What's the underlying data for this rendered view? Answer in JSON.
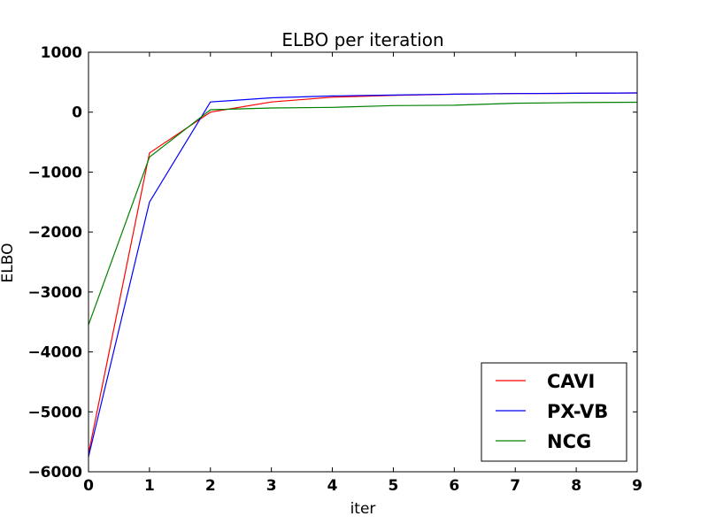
{
  "chart_data": {
    "type": "line",
    "title": "ELBO per iteration",
    "xlabel": "iter",
    "ylabel": "ELBO",
    "xlim": [
      0,
      9
    ],
    "ylim": [
      -6000,
      1000
    ],
    "xticks": [
      0,
      1,
      2,
      3,
      4,
      5,
      6,
      7,
      8,
      9
    ],
    "yticks": [
      -6000,
      -5000,
      -4000,
      -3000,
      -2000,
      -1000,
      0,
      1000
    ],
    "x": [
      0,
      1,
      2,
      3,
      4,
      5,
      6,
      7,
      8,
      9
    ],
    "grid": false,
    "legend_position": "lower-right",
    "series": [
      {
        "name": "CAVI",
        "color": "#ff0000",
        "values": [
          -5700,
          -680,
          0,
          170,
          250,
          280,
          300,
          310,
          315,
          320
        ]
      },
      {
        "name": "PX-VB",
        "color": "#0000ff",
        "values": [
          -5750,
          -1500,
          170,
          240,
          270,
          285,
          300,
          310,
          315,
          320
        ]
      },
      {
        "name": "NCG",
        "color": "#008000",
        "values": [
          -3550,
          -750,
          40,
          70,
          80,
          110,
          115,
          150,
          160,
          165
        ]
      }
    ]
  }
}
